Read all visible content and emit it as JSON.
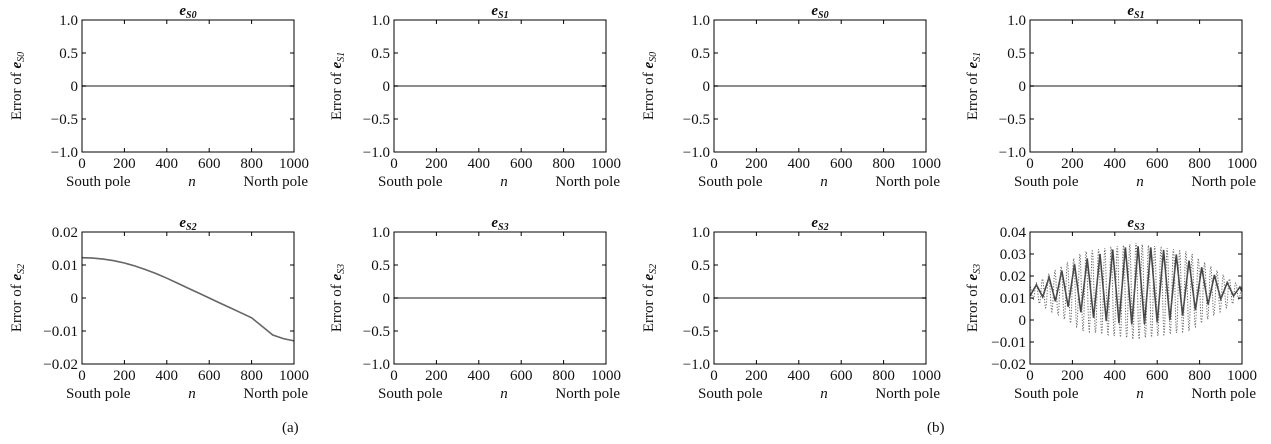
{
  "panel_labels": [
    "(a)",
    "(b)"
  ],
  "chart_data": [
    {
      "id": "a-es0",
      "panel": "(a)",
      "type": "line",
      "title": "e",
      "title_sub": "S0",
      "ylabel": "Error of ",
      "ylabel_var": "e",
      "ylabel_sub": "S0",
      "xlabel_left": "South pole",
      "xlabel_mid": "n",
      "xlabel_right": "North pole",
      "xlim": [
        0,
        1000
      ],
      "ylim": [
        -1.0,
        1.0
      ],
      "xticks": [
        0,
        200,
        400,
        600,
        800,
        1000
      ],
      "xtick_labels": [
        "0",
        "200",
        "400",
        "600",
        "800",
        "1000"
      ],
      "yticks": [
        1.0,
        0.5,
        0,
        -0.5,
        -1.0
      ],
      "ytick_labels": [
        "1.0",
        "0.5",
        "0",
        "−0.5",
        "−1.0"
      ],
      "series": [
        {
          "style": "solid",
          "color": "#666666",
          "x": [
            0,
            1000
          ],
          "y": [
            0,
            0
          ]
        }
      ]
    },
    {
      "id": "a-es1",
      "panel": "(a)",
      "type": "line",
      "title": "e",
      "title_sub": "S1",
      "ylabel": "Error of ",
      "ylabel_var": "e",
      "ylabel_sub": "S1",
      "xlabel_left": "South pole",
      "xlabel_mid": "n",
      "xlabel_right": "North pole",
      "xlim": [
        0,
        1000
      ],
      "ylim": [
        -1.0,
        1.0
      ],
      "xticks": [
        0,
        200,
        400,
        600,
        800,
        1000
      ],
      "xtick_labels": [
        "0",
        "200",
        "400",
        "600",
        "800",
        "1000"
      ],
      "yticks": [
        1.0,
        0.5,
        0,
        -0.5,
        -1.0
      ],
      "ytick_labels": [
        "1.0",
        "0.5",
        "0",
        "−0.5",
        "−1.0"
      ],
      "series": [
        {
          "style": "solid",
          "color": "#666666",
          "x": [
            0,
            1000
          ],
          "y": [
            0,
            0
          ]
        }
      ]
    },
    {
      "id": "a-es2",
      "panel": "(a)",
      "type": "line",
      "title": "e",
      "title_sub": "S2",
      "ylabel": "Error of ",
      "ylabel_var": "e",
      "ylabel_sub": "S2",
      "xlabel_left": "South pole",
      "xlabel_mid": "n",
      "xlabel_right": "North pole",
      "xlim": [
        0,
        1000
      ],
      "ylim": [
        -0.02,
        0.02
      ],
      "xticks": [
        0,
        200,
        400,
        600,
        800,
        1000
      ],
      "xtick_labels": [
        "0",
        "200",
        "400",
        "600",
        "800",
        "1000"
      ],
      "yticks": [
        0.02,
        0.01,
        0,
        -0.01,
        -0.02
      ],
      "ytick_labels": [
        "0.02",
        "0.01",
        "0",
        "−0.01",
        "−0.02"
      ],
      "series": [
        {
          "style": "solid",
          "color": "#666666",
          "x": [
            0,
            50,
            100,
            150,
            200,
            250,
            300,
            350,
            400,
            450,
            500,
            550,
            600,
            650,
            700,
            750,
            800,
            850,
            900,
            950,
            1000
          ],
          "y": [
            0.0122,
            0.0121,
            0.0118,
            0.0113,
            0.0106,
            0.0097,
            0.0086,
            0.0074,
            0.006,
            0.0045,
            0.003,
            0.0015,
            0.0,
            -0.0015,
            -0.003,
            -0.0045,
            -0.006,
            -0.0086,
            -0.0112,
            -0.0123,
            -0.013
          ]
        }
      ]
    },
    {
      "id": "a-es3",
      "panel": "(a)",
      "type": "line",
      "title": "e",
      "title_sub": "S3",
      "ylabel": "Error of ",
      "ylabel_var": "e",
      "ylabel_sub": "S3",
      "xlabel_left": "South pole",
      "xlabel_mid": "n",
      "xlabel_right": "North pole",
      "xlim": [
        0,
        1000
      ],
      "ylim": [
        -1.0,
        1.0
      ],
      "xticks": [
        0,
        200,
        400,
        600,
        800,
        1000
      ],
      "xtick_labels": [
        "0",
        "200",
        "400",
        "600",
        "800",
        "1000"
      ],
      "yticks": [
        1.0,
        0.5,
        0,
        -0.5,
        -1.0
      ],
      "ytick_labels": [
        "1.0",
        "0.5",
        "0",
        "−0.5",
        "−1.0"
      ],
      "series": [
        {
          "style": "solid",
          "color": "#666666",
          "x": [
            0,
            1000
          ],
          "y": [
            0,
            0
          ]
        }
      ]
    },
    {
      "id": "b-es0",
      "panel": "(b)",
      "type": "line",
      "title": "e",
      "title_sub": "S0",
      "ylabel": "Error of ",
      "ylabel_var": "e",
      "ylabel_sub": "S0",
      "xlabel_left": "South pole",
      "xlabel_mid": "n",
      "xlabel_right": "North pole",
      "xlim": [
        0,
        1000
      ],
      "ylim": [
        -1.0,
        1.0
      ],
      "xticks": [
        0,
        200,
        400,
        600,
        800,
        1000
      ],
      "xtick_labels": [
        "0",
        "200",
        "400",
        "600",
        "800",
        "1000"
      ],
      "yticks": [
        1.0,
        0.5,
        0,
        -0.5,
        -1.0
      ],
      "ytick_labels": [
        "1.0",
        "0.5",
        "0",
        "−0.5",
        "−1.0"
      ],
      "series": [
        {
          "style": "solid",
          "color": "#666666",
          "x": [
            0,
            1000
          ],
          "y": [
            0,
            0
          ]
        }
      ]
    },
    {
      "id": "b-es1",
      "panel": "(b)",
      "type": "line",
      "title": "e",
      "title_sub": "S1",
      "ylabel": "Error of ",
      "ylabel_var": "e",
      "ylabel_sub": "S1",
      "xlabel_left": "South pole",
      "xlabel_mid": "n",
      "xlabel_right": "North pole",
      "xlim": [
        0,
        1000
      ],
      "ylim": [
        -1.0,
        1.0
      ],
      "xticks": [
        0,
        200,
        400,
        600,
        800,
        1000
      ],
      "xtick_labels": [
        "0",
        "200",
        "400",
        "600",
        "800",
        "1000"
      ],
      "yticks": [
        1.0,
        0.5,
        0,
        -0.5,
        -1.0
      ],
      "ytick_labels": [
        "1.0",
        "0.5",
        "0",
        "−0.5",
        "−1.0"
      ],
      "series": [
        {
          "style": "solid",
          "color": "#666666",
          "x": [
            0,
            1000
          ],
          "y": [
            0,
            0
          ]
        }
      ]
    },
    {
      "id": "b-es2",
      "panel": "(b)",
      "type": "line",
      "title": "e",
      "title_sub": "S2",
      "ylabel": "Error of ",
      "ylabel_var": "e",
      "ylabel_sub": "S2",
      "xlabel_left": "South pole",
      "xlabel_mid": "n",
      "xlabel_right": "North pole",
      "xlim": [
        0,
        1000
      ],
      "ylim": [
        -1.0,
        1.0
      ],
      "xticks": [
        0,
        200,
        400,
        600,
        800,
        1000
      ],
      "xtick_labels": [
        "0",
        "200",
        "400",
        "600",
        "800",
        "1000"
      ],
      "yticks": [
        1.0,
        0.5,
        0,
        -0.5,
        -1.0
      ],
      "ytick_labels": [
        "1.0",
        "0.5",
        "0",
        "−0.5",
        "−1.0"
      ],
      "series": [
        {
          "style": "solid",
          "color": "#666666",
          "x": [
            0,
            1000
          ],
          "y": [
            0,
            0
          ]
        }
      ]
    },
    {
      "id": "b-es3",
      "panel": "(b)",
      "type": "line",
      "title": "e",
      "title_sub": "S3",
      "ylabel": "Error of ",
      "ylabel_var": "e",
      "ylabel_sub": "S3",
      "xlabel_left": "South pole",
      "xlabel_mid": "n",
      "xlabel_right": "North pole",
      "xlim": [
        0,
        1000
      ],
      "ylim": [
        -0.02,
        0.04
      ],
      "xticks": [
        0,
        200,
        400,
        600,
        800,
        1000
      ],
      "xtick_labels": [
        "0",
        "200",
        "400",
        "600",
        "800",
        "1000"
      ],
      "yticks": [
        0.04,
        0.03,
        0.02,
        0.01,
        0,
        -0.01,
        -0.02
      ],
      "ytick_labels": [
        "0.04",
        "0.03",
        "0.02",
        "0.01",
        "0",
        "−0.01",
        "−0.02"
      ],
      "series": [
        {
          "style": "solid",
          "color": "#444444",
          "x": [
            0,
            30,
            60,
            90,
            120,
            150,
            180,
            210,
            240,
            270,
            300,
            330,
            360,
            390,
            420,
            450,
            480,
            510,
            540,
            570,
            600,
            630,
            660,
            690,
            720,
            750,
            780,
            810,
            840,
            870,
            900,
            930,
            960,
            990,
            1000
          ],
          "y": [
            0.011,
            0.016,
            0.0105,
            0.0195,
            0.0085,
            0.0225,
            0.006,
            0.0255,
            0.0035,
            0.028,
            0.001,
            0.03,
            -0.0005,
            0.032,
            -0.0015,
            0.033,
            -0.002,
            0.0335,
            -0.0018,
            0.033,
            -0.0012,
            0.0318,
            0.0,
            0.0298,
            0.002,
            0.027,
            0.0045,
            0.024,
            0.007,
            0.0205,
            0.0095,
            0.017,
            0.011,
            0.015,
            0.013
          ]
        },
        {
          "style": "dotted",
          "color": "#666666",
          "x": [
            0,
            1000
          ],
          "y": [
            0.0125,
            0.0125
          ],
          "envelope_upper": {
            "x": [
              0,
              250,
              500,
              750,
              1000
            ],
            "y": [
              0.015,
              0.031,
              0.035,
              0.031,
              0.015
            ]
          },
          "envelope_lower": {
            "x": [
              0,
              250,
              500,
              750,
              1000
            ],
            "y": [
              0.01,
              -0.005,
              -0.009,
              -0.005,
              0.01
            ]
          },
          "oscillations": 34
        }
      ]
    }
  ]
}
